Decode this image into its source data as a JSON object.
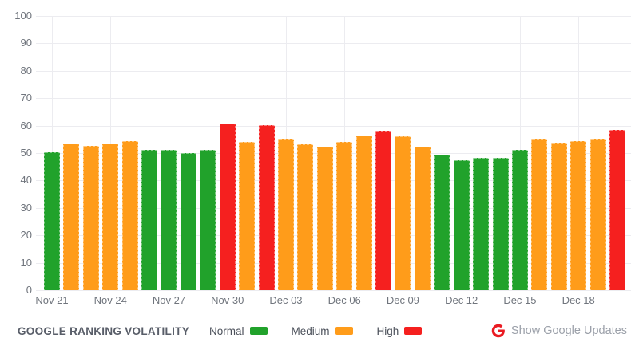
{
  "chart_data": {
    "type": "bar",
    "title": "Google Ranking Volatility",
    "xlabel": "",
    "ylabel": "",
    "ylim": [
      0,
      100
    ],
    "y_ticks": [
      0,
      10,
      20,
      30,
      40,
      50,
      60,
      70,
      80,
      90,
      100
    ],
    "grid": true,
    "x_label_every": 3,
    "legend_position": "bottom",
    "level_colors": {
      "normal": "#21A22B",
      "medium": "#FF9C1A",
      "high": "#F5201F"
    },
    "bars": [
      {
        "date": "Nov 21",
        "value": 50.3,
        "level": "normal"
      },
      {
        "date": "Nov 22",
        "value": 53.4,
        "level": "medium"
      },
      {
        "date": "Nov 23",
        "value": 52.5,
        "level": "medium"
      },
      {
        "date": "Nov 24",
        "value": 53.4,
        "level": "medium"
      },
      {
        "date": "Nov 25",
        "value": 54.4,
        "level": "medium"
      },
      {
        "date": "Nov 26",
        "value": 51.2,
        "level": "normal"
      },
      {
        "date": "Nov 27",
        "value": 51.2,
        "level": "normal"
      },
      {
        "date": "Nov 28",
        "value": 50.1,
        "level": "normal"
      },
      {
        "date": "Nov 29",
        "value": 51.2,
        "level": "normal"
      },
      {
        "date": "Nov 30",
        "value": 60.9,
        "level": "high"
      },
      {
        "date": "Dec 01",
        "value": 54.2,
        "level": "medium"
      },
      {
        "date": "Dec 02",
        "value": 60.2,
        "level": "high"
      },
      {
        "date": "Dec 03",
        "value": 55.2,
        "level": "medium"
      },
      {
        "date": "Dec 04",
        "value": 53.3,
        "level": "medium"
      },
      {
        "date": "Dec 05",
        "value": 52.4,
        "level": "medium"
      },
      {
        "date": "Dec 06",
        "value": 54.2,
        "level": "medium"
      },
      {
        "date": "Dec 07",
        "value": 56.3,
        "level": "medium"
      },
      {
        "date": "Dec 08",
        "value": 58.1,
        "level": "high"
      },
      {
        "date": "Dec 09",
        "value": 56.2,
        "level": "medium"
      },
      {
        "date": "Dec 10",
        "value": 52.4,
        "level": "medium"
      },
      {
        "date": "Dec 11",
        "value": 49.4,
        "level": "normal"
      },
      {
        "date": "Dec 12",
        "value": 47.3,
        "level": "normal"
      },
      {
        "date": "Dec 13",
        "value": 48.3,
        "level": "normal"
      },
      {
        "date": "Dec 14",
        "value": 48.3,
        "level": "normal"
      },
      {
        "date": "Dec 15",
        "value": 51.3,
        "level": "normal"
      },
      {
        "date": "Dec 16",
        "value": 55.3,
        "level": "medium"
      },
      {
        "date": "Dec 17",
        "value": 53.9,
        "level": "medium"
      },
      {
        "date": "Dec 18",
        "value": 54.4,
        "level": "medium"
      },
      {
        "date": "Dec 19",
        "value": 55.2,
        "level": "medium"
      },
      {
        "date": "Dec 20",
        "value": 58.3,
        "level": "high"
      }
    ],
    "x_tick_labels": [
      "Nov 21",
      "Nov 24",
      "Nov 27",
      "Nov 30",
      "Dec 03",
      "Dec 06",
      "Dec 09",
      "Dec 12",
      "Dec 15",
      "Dec 18"
    ]
  },
  "footer": {
    "title": "GOOGLE RANKING VOLATILITY",
    "legend": [
      {
        "label": "Normal",
        "level": "normal",
        "color": "#21A22B"
      },
      {
        "label": "Medium",
        "level": "medium",
        "color": "#FF9C1A"
      },
      {
        "label": "High",
        "level": "high",
        "color": "#F5201F"
      }
    ],
    "google_updates": {
      "icon": "google-g-icon",
      "icon_color": "#EA1B22",
      "label": "Show Google Updates"
    }
  }
}
